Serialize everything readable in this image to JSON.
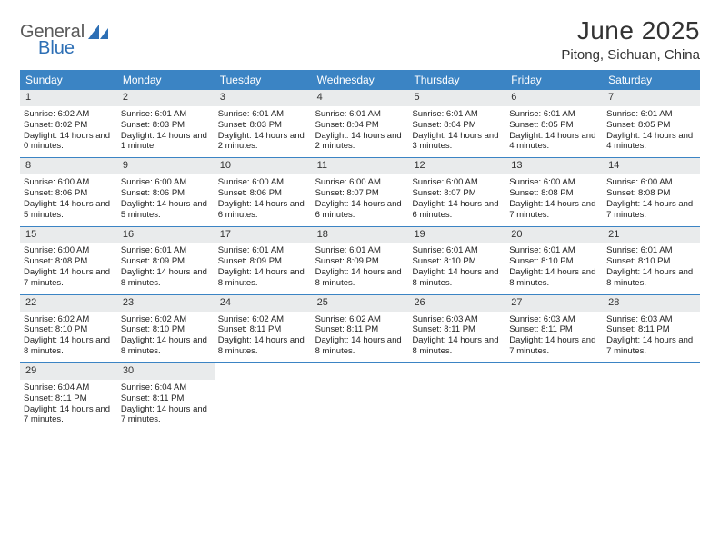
{
  "brand": {
    "word1": "General",
    "word2": "Blue"
  },
  "colors": {
    "header_bg": "#3b84c4",
    "header_text": "#ffffff",
    "daynum_bg": "#e9ebec",
    "week_divider": "#3b84c4",
    "brand_gray": "#5a5a5a",
    "brand_blue": "#2d6fb5",
    "text": "#222222",
    "background": "#ffffff"
  },
  "typography": {
    "title_fontsize": 28,
    "location_fontsize": 15,
    "dayheader_fontsize": 12,
    "cell_fontsize": 9.5,
    "font_family": "Arial"
  },
  "title": "June 2025",
  "location": "Pitong, Sichuan, China",
  "day_names": [
    "Sunday",
    "Monday",
    "Tuesday",
    "Wednesday",
    "Thursday",
    "Friday",
    "Saturday"
  ],
  "weeks": [
    [
      {
        "day": "1",
        "sunrise": "Sunrise: 6:02 AM",
        "sunset": "Sunset: 8:02 PM",
        "daylight": "Daylight: 14 hours and 0 minutes."
      },
      {
        "day": "2",
        "sunrise": "Sunrise: 6:01 AM",
        "sunset": "Sunset: 8:03 PM",
        "daylight": "Daylight: 14 hours and 1 minute."
      },
      {
        "day": "3",
        "sunrise": "Sunrise: 6:01 AM",
        "sunset": "Sunset: 8:03 PM",
        "daylight": "Daylight: 14 hours and 2 minutes."
      },
      {
        "day": "4",
        "sunrise": "Sunrise: 6:01 AM",
        "sunset": "Sunset: 8:04 PM",
        "daylight": "Daylight: 14 hours and 2 minutes."
      },
      {
        "day": "5",
        "sunrise": "Sunrise: 6:01 AM",
        "sunset": "Sunset: 8:04 PM",
        "daylight": "Daylight: 14 hours and 3 minutes."
      },
      {
        "day": "6",
        "sunrise": "Sunrise: 6:01 AM",
        "sunset": "Sunset: 8:05 PM",
        "daylight": "Daylight: 14 hours and 4 minutes."
      },
      {
        "day": "7",
        "sunrise": "Sunrise: 6:01 AM",
        "sunset": "Sunset: 8:05 PM",
        "daylight": "Daylight: 14 hours and 4 minutes."
      }
    ],
    [
      {
        "day": "8",
        "sunrise": "Sunrise: 6:00 AM",
        "sunset": "Sunset: 8:06 PM",
        "daylight": "Daylight: 14 hours and 5 minutes."
      },
      {
        "day": "9",
        "sunrise": "Sunrise: 6:00 AM",
        "sunset": "Sunset: 8:06 PM",
        "daylight": "Daylight: 14 hours and 5 minutes."
      },
      {
        "day": "10",
        "sunrise": "Sunrise: 6:00 AM",
        "sunset": "Sunset: 8:06 PM",
        "daylight": "Daylight: 14 hours and 6 minutes."
      },
      {
        "day": "11",
        "sunrise": "Sunrise: 6:00 AM",
        "sunset": "Sunset: 8:07 PM",
        "daylight": "Daylight: 14 hours and 6 minutes."
      },
      {
        "day": "12",
        "sunrise": "Sunrise: 6:00 AM",
        "sunset": "Sunset: 8:07 PM",
        "daylight": "Daylight: 14 hours and 6 minutes."
      },
      {
        "day": "13",
        "sunrise": "Sunrise: 6:00 AM",
        "sunset": "Sunset: 8:08 PM",
        "daylight": "Daylight: 14 hours and 7 minutes."
      },
      {
        "day": "14",
        "sunrise": "Sunrise: 6:00 AM",
        "sunset": "Sunset: 8:08 PM",
        "daylight": "Daylight: 14 hours and 7 minutes."
      }
    ],
    [
      {
        "day": "15",
        "sunrise": "Sunrise: 6:00 AM",
        "sunset": "Sunset: 8:08 PM",
        "daylight": "Daylight: 14 hours and 7 minutes."
      },
      {
        "day": "16",
        "sunrise": "Sunrise: 6:01 AM",
        "sunset": "Sunset: 8:09 PM",
        "daylight": "Daylight: 14 hours and 8 minutes."
      },
      {
        "day": "17",
        "sunrise": "Sunrise: 6:01 AM",
        "sunset": "Sunset: 8:09 PM",
        "daylight": "Daylight: 14 hours and 8 minutes."
      },
      {
        "day": "18",
        "sunrise": "Sunrise: 6:01 AM",
        "sunset": "Sunset: 8:09 PM",
        "daylight": "Daylight: 14 hours and 8 minutes."
      },
      {
        "day": "19",
        "sunrise": "Sunrise: 6:01 AM",
        "sunset": "Sunset: 8:10 PM",
        "daylight": "Daylight: 14 hours and 8 minutes."
      },
      {
        "day": "20",
        "sunrise": "Sunrise: 6:01 AM",
        "sunset": "Sunset: 8:10 PM",
        "daylight": "Daylight: 14 hours and 8 minutes."
      },
      {
        "day": "21",
        "sunrise": "Sunrise: 6:01 AM",
        "sunset": "Sunset: 8:10 PM",
        "daylight": "Daylight: 14 hours and 8 minutes."
      }
    ],
    [
      {
        "day": "22",
        "sunrise": "Sunrise: 6:02 AM",
        "sunset": "Sunset: 8:10 PM",
        "daylight": "Daylight: 14 hours and 8 minutes."
      },
      {
        "day": "23",
        "sunrise": "Sunrise: 6:02 AM",
        "sunset": "Sunset: 8:10 PM",
        "daylight": "Daylight: 14 hours and 8 minutes."
      },
      {
        "day": "24",
        "sunrise": "Sunrise: 6:02 AM",
        "sunset": "Sunset: 8:11 PM",
        "daylight": "Daylight: 14 hours and 8 minutes."
      },
      {
        "day": "25",
        "sunrise": "Sunrise: 6:02 AM",
        "sunset": "Sunset: 8:11 PM",
        "daylight": "Daylight: 14 hours and 8 minutes."
      },
      {
        "day": "26",
        "sunrise": "Sunrise: 6:03 AM",
        "sunset": "Sunset: 8:11 PM",
        "daylight": "Daylight: 14 hours and 8 minutes."
      },
      {
        "day": "27",
        "sunrise": "Sunrise: 6:03 AM",
        "sunset": "Sunset: 8:11 PM",
        "daylight": "Daylight: 14 hours and 7 minutes."
      },
      {
        "day": "28",
        "sunrise": "Sunrise: 6:03 AM",
        "sunset": "Sunset: 8:11 PM",
        "daylight": "Daylight: 14 hours and 7 minutes."
      }
    ],
    [
      {
        "day": "29",
        "sunrise": "Sunrise: 6:04 AM",
        "sunset": "Sunset: 8:11 PM",
        "daylight": "Daylight: 14 hours and 7 minutes."
      },
      {
        "day": "30",
        "sunrise": "Sunrise: 6:04 AM",
        "sunset": "Sunset: 8:11 PM",
        "daylight": "Daylight: 14 hours and 7 minutes."
      },
      {
        "empty": true
      },
      {
        "empty": true
      },
      {
        "empty": true
      },
      {
        "empty": true
      },
      {
        "empty": true
      }
    ]
  ]
}
